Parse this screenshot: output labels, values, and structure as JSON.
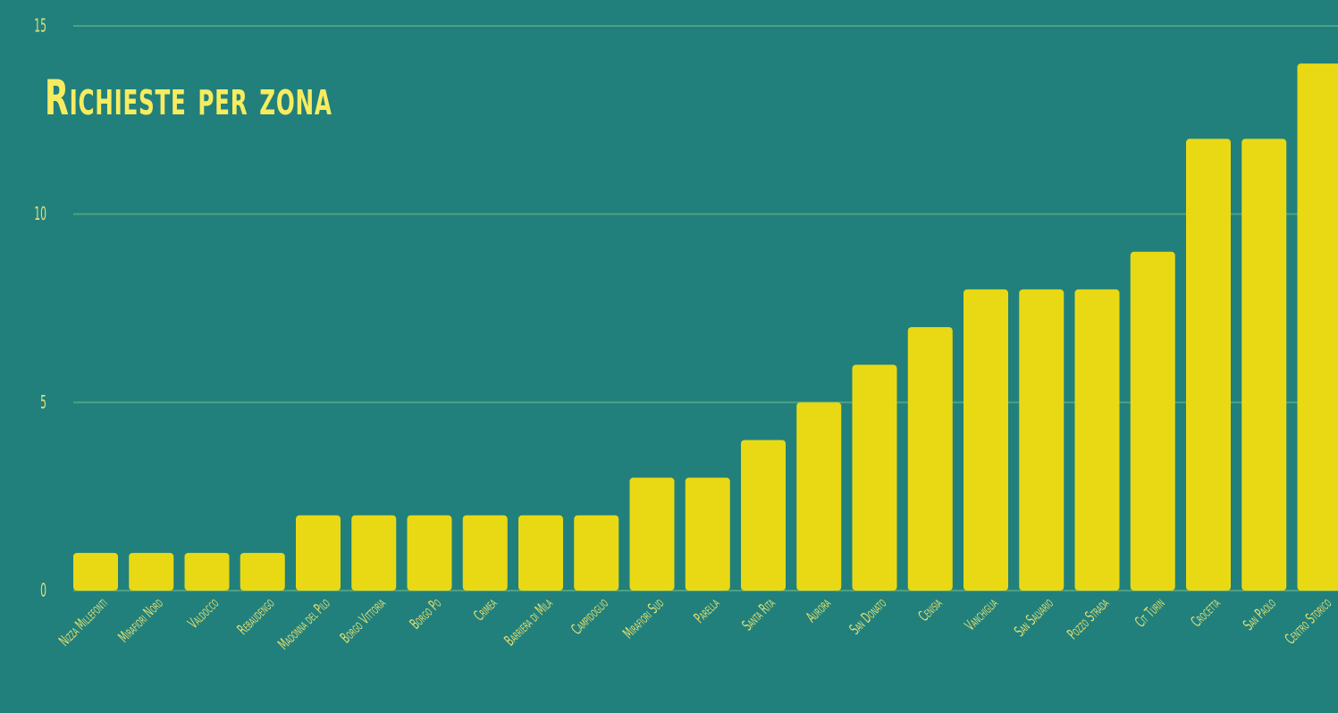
{
  "colors": {
    "background": "#21807b",
    "bar": "#e9d915",
    "gridline": "#4fa083",
    "tick_text": "#e6df74",
    "title": "#f7ec5f"
  },
  "chart_data": {
    "type": "bar",
    "title": "Richieste per zona",
    "xlabel": "",
    "ylabel": "",
    "ylim": [
      0,
      15
    ],
    "yticks": [
      0,
      5,
      10,
      15
    ],
    "grid": true,
    "legend": "none",
    "categories": [
      "Nizza Millefonti",
      "Mirafiori Nord",
      "Valdocco",
      "Rebaudengo",
      "Madonna del Pilo",
      "Borgo Vittoria",
      "Borgo Po",
      "Crimea",
      "Barriera di Mila",
      "Campidoglio",
      "Mirafiori Sud",
      "Parella",
      "Santa Rita",
      "Aurora",
      "San Donato",
      "Cenisia",
      "Vanchiglia",
      "San Salvario",
      "Pozzo Strada",
      "Cit Turin",
      "Crocetta",
      "San Paolo",
      "Centro Storico"
    ],
    "values": [
      1,
      1,
      1,
      1,
      2,
      2,
      2,
      2,
      2,
      2,
      3,
      3,
      4,
      5,
      6,
      7,
      8,
      8,
      8,
      9,
      12,
      12,
      14
    ]
  }
}
